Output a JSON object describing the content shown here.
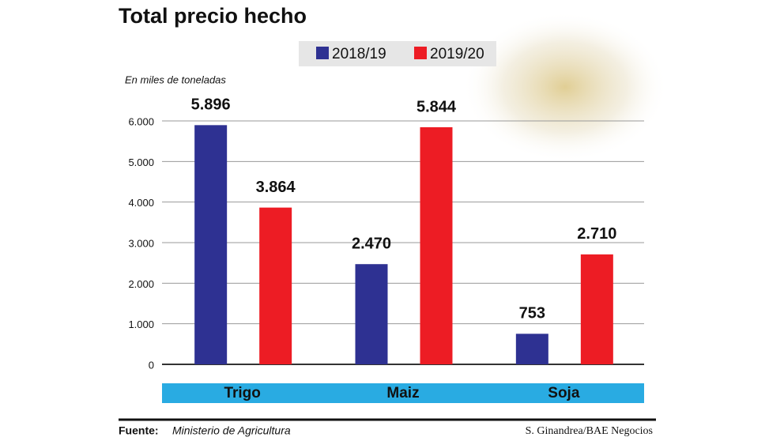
{
  "chart_data": {
    "type": "bar",
    "title": "Total precio hecho",
    "unit_label": "En miles de toneladas",
    "categories": [
      "Trigo",
      "Maiz",
      "Soja"
    ],
    "series": [
      {
        "name": "2018/19",
        "color": "#2e3192",
        "values": [
          5896,
          2470,
          753
        ],
        "value_labels": [
          "5.896",
          "2.470",
          "753"
        ]
      },
      {
        "name": "2019/20",
        "color": "#ed1c24",
        "values": [
          3864,
          5844,
          2710
        ],
        "value_labels": [
          "3.864",
          "5.844",
          "2.710"
        ]
      }
    ],
    "ylim": [
      0,
      6000
    ],
    "yticks": [
      0,
      {
        "value": 1000,
        "label": "1.000"
      },
      {
        "value": 2000,
        "label": "2.000"
      },
      {
        "value": 3000,
        "label": "3.000"
      },
      {
        "value": 4000,
        "label": "4.000"
      },
      {
        "value": 5000,
        "label": "5.000"
      },
      {
        "value": 6000,
        "label": "6.000"
      }
    ],
    "grid": true,
    "source_label": "Fuente:",
    "source": "Ministerio de Agricultura",
    "credit": "S. Ginandrea/BAE Negocios"
  }
}
